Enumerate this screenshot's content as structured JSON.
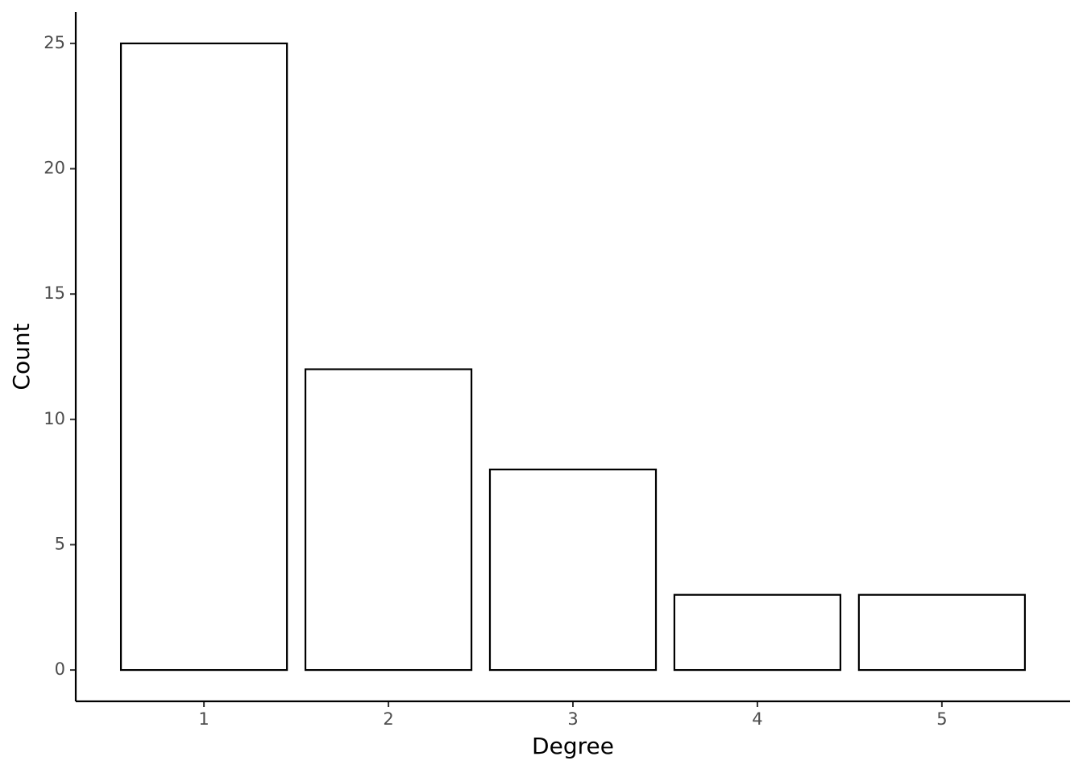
{
  "chart_data": {
    "type": "bar",
    "x": [
      1,
      2,
      3,
      4,
      5
    ],
    "values": [
      25,
      12,
      8,
      3,
      3
    ],
    "color": "#ffffff",
    "edgecolor": "#000000",
    "xlabel": "Degree",
    "ylabel": "Count",
    "xlim": [
      0.305,
      5.695
    ],
    "xticks": [
      1,
      2,
      3,
      4,
      5
    ],
    "ylim": [
      -1.25,
      26.25
    ],
    "yticks": [
      0,
      5,
      10,
      15,
      20,
      25
    ],
    "grid": false
  }
}
